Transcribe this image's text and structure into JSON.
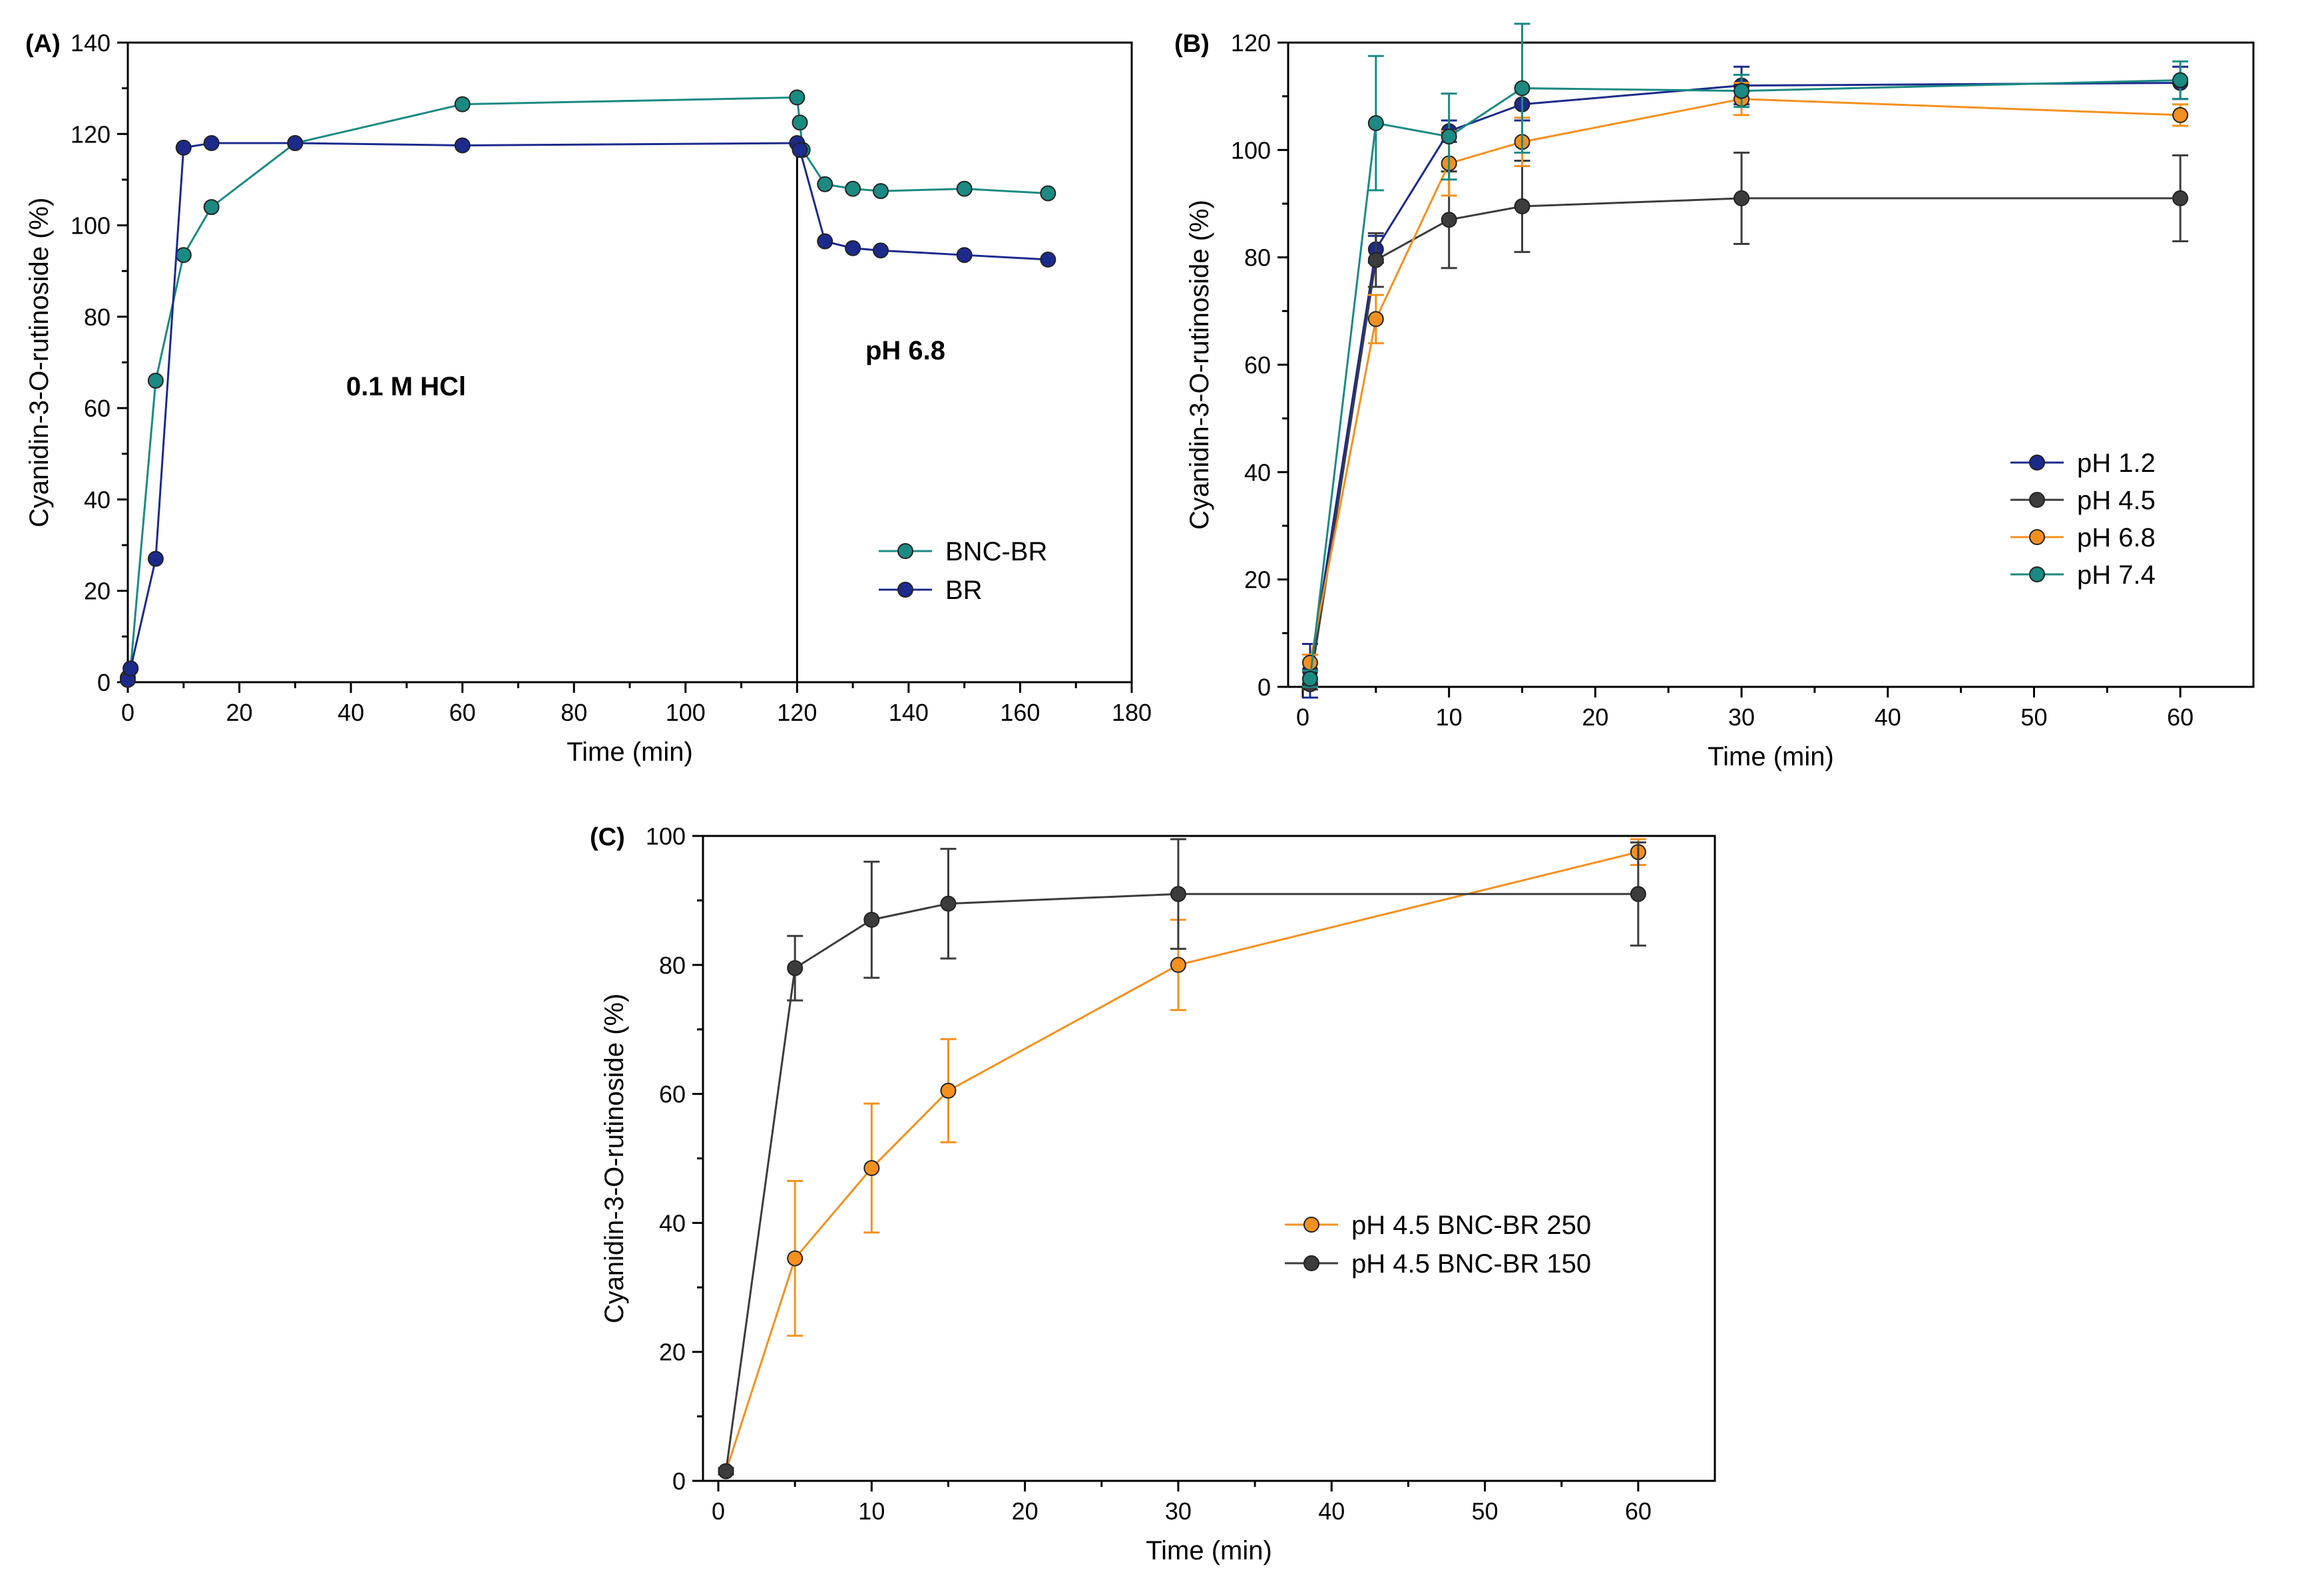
{
  "chart_data": [
    {
      "panel": "(A)",
      "type": "line",
      "xlabel": "Time (min)",
      "ylabel": "Cyanidin-3-O-rutinoside (%)",
      "xlim": [
        0,
        180
      ],
      "ylim": [
        0,
        140
      ],
      "xticks": [
        0,
        20,
        40,
        60,
        80,
        100,
        120,
        140,
        160,
        180
      ],
      "yticks": [
        0,
        20,
        40,
        60,
        80,
        100,
        120,
        140
      ],
      "annotations": [
        "0.1 M HCl",
        "pH 6.8"
      ],
      "vline_x": 120,
      "legend_position": "lower-right",
      "series": [
        {
          "name": "BNC-BR",
          "color": "#1a8a82",
          "x": [
            0,
            0.5,
            5,
            10,
            15,
            30,
            60,
            120,
            120.5,
            121,
            125,
            130,
            135,
            150,
            165
          ],
          "y": [
            1,
            3,
            66,
            93.5,
            104,
            118,
            126.5,
            128,
            122.5,
            116.5,
            109,
            108,
            107.5,
            108,
            107
          ]
        },
        {
          "name": "BR",
          "color": "#1c2a8c",
          "x": [
            0,
            0.5,
            5,
            10,
            15,
            30,
            60,
            120,
            120.5,
            125,
            130,
            135,
            150,
            165
          ],
          "y": [
            0.5,
            3,
            27,
            117,
            118,
            118,
            117.5,
            118,
            116.5,
            96.5,
            95,
            94.5,
            93.5,
            92.5
          ]
        }
      ]
    },
    {
      "panel": "(B)",
      "type": "line",
      "xlabel": "Time (min)",
      "ylabel": "Cyanidin-3-O-rutinoside (%)",
      "xlim": [
        -1,
        65
      ],
      "ylim": [
        0,
        120
      ],
      "xticks": [
        0,
        10,
        20,
        30,
        40,
        50,
        60
      ],
      "yticks": [
        0,
        20,
        40,
        60,
        80,
        100,
        120
      ],
      "legend_position": "center-right",
      "series": [
        {
          "name": "pH 1.2",
          "color": "#1c2a8c",
          "x": [
            0.5,
            5,
            10,
            15,
            30,
            60
          ],
          "y": [
            3,
            81.5,
            103.5,
            108.5,
            112,
            112.5
          ],
          "err": [
            5,
            2.5,
            2,
            3,
            3.5,
            3
          ]
        },
        {
          "name": "pH 4.5",
          "color": "#3c3c3c",
          "x": [
            0.5,
            5,
            10,
            15,
            30,
            60
          ],
          "y": [
            0.5,
            79.5,
            87,
            89.5,
            91,
            91
          ],
          "err": [
            1,
            5,
            9,
            8.5,
            8.5,
            8
          ]
        },
        {
          "name": "pH 6.8",
          "color": "#f5901e",
          "x": [
            0.5,
            5,
            10,
            15,
            30,
            60
          ],
          "y": [
            4.5,
            68.5,
            97.5,
            101.5,
            109.5,
            106.5
          ],
          "err": [
            1.5,
            4.5,
            6,
            4.5,
            3,
            2
          ]
        },
        {
          "name": "pH 7.4",
          "color": "#1a8a82",
          "x": [
            0.5,
            5,
            10,
            15,
            30,
            60
          ],
          "y": [
            1.5,
            105,
            102.5,
            111.5,
            111,
            113
          ],
          "err": [
            1.5,
            12.5,
            8,
            12,
            3,
            3.5
          ]
        }
      ]
    },
    {
      "panel": "(C)",
      "type": "line",
      "xlabel": "Time (min)",
      "ylabel": "Cyanidin-3-O-rutinoside (%)",
      "xlim": [
        -1,
        65
      ],
      "ylim": [
        0,
        100
      ],
      "xticks": [
        0,
        10,
        20,
        30,
        40,
        50,
        60
      ],
      "yticks": [
        0,
        20,
        40,
        60,
        80,
        100
      ],
      "legend_position": "center-right",
      "series": [
        {
          "name": "pH 4.5 BNC-BR 250",
          "color": "#f5901e",
          "x": [
            0.5,
            5,
            10,
            15,
            30,
            60
          ],
          "y": [
            1.5,
            34.5,
            48.5,
            60.5,
            80,
            97.5
          ],
          "err": [
            0.5,
            12,
            10,
            8,
            7,
            2
          ]
        },
        {
          "name": "pH 4.5 BNC-BR 150",
          "color": "#3c3c3c",
          "x": [
            0.5,
            5,
            10,
            15,
            30,
            60
          ],
          "y": [
            1.5,
            79.5,
            87,
            89.5,
            91,
            91
          ],
          "err": [
            0.5,
            5,
            9,
            8.5,
            8.5,
            8
          ]
        }
      ]
    }
  ]
}
